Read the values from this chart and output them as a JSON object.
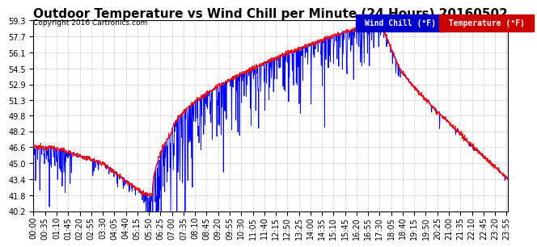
{
  "title": "Outdoor Temperature vs Wind Chill per Minute (24 Hours) 20160502",
  "copyright": "Copyright 2016 Cartronics.com",
  "legend_wind_chill": "Wind Chill (°F)",
  "legend_temperature": "Temperature (°F)",
  "yticks": [
    40.2,
    41.8,
    43.4,
    45.0,
    46.6,
    48.2,
    49.8,
    51.3,
    52.9,
    54.5,
    56.1,
    57.7,
    59.3
  ],
  "ymin": 40.2,
  "ymax": 59.3,
  "color_temp": "#ff0000",
  "color_wind": "#0000ff",
  "bg_color": "#ffffff",
  "grid_color": "#888888",
  "title_fontsize": 11,
  "label_fontsize": 7,
  "total_minutes": 1440,
  "tick_interval": 35
}
